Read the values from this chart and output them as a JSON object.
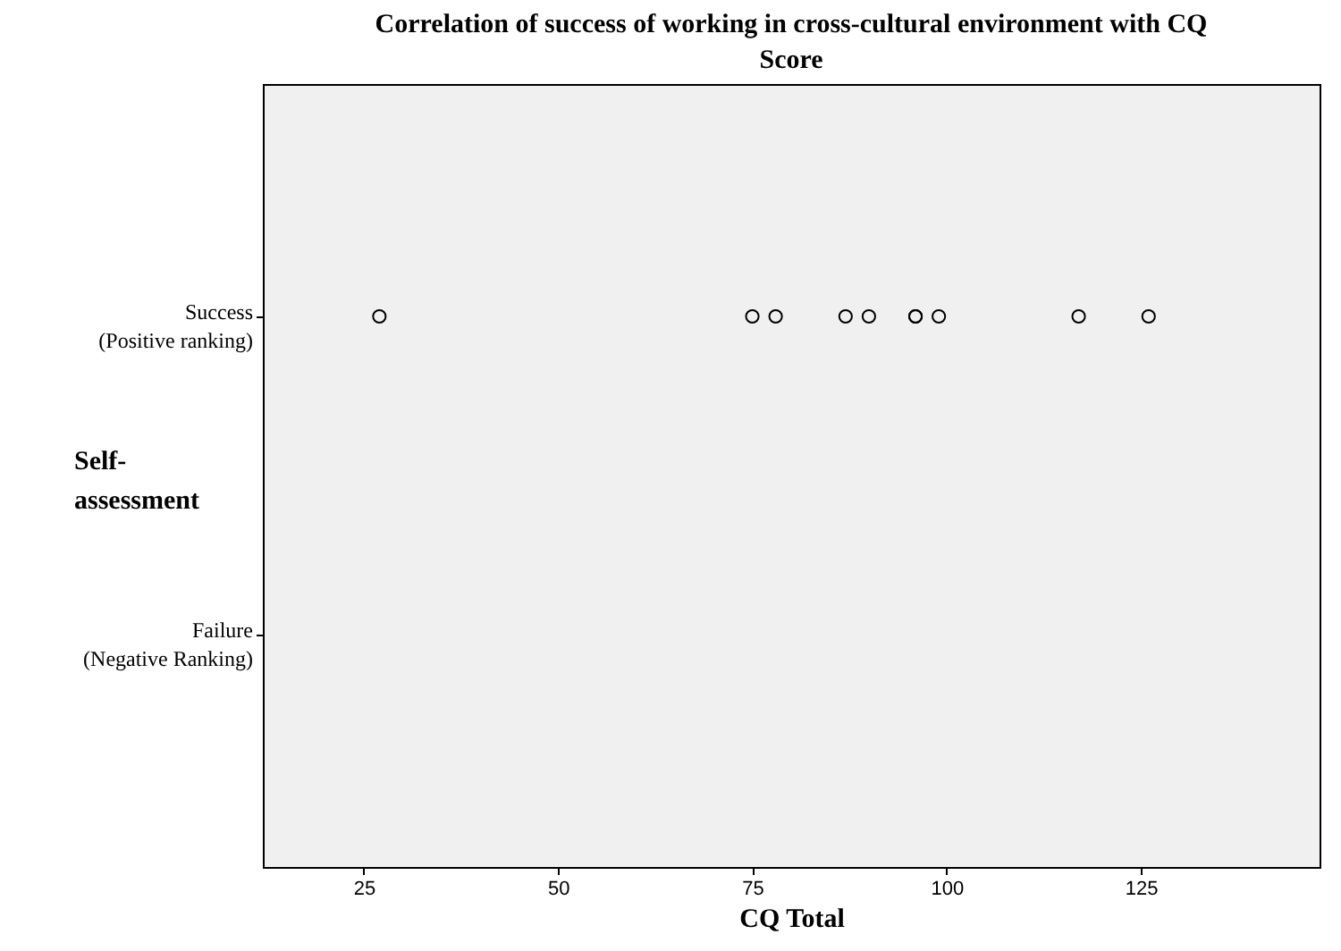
{
  "chart_data": {
    "type": "scatter",
    "orientation": "horizontal",
    "title": "Correlation of success of working in cross-cultural environment with CQ Score",
    "xlabel": "CQ Total",
    "ylabel": "Self-assessment",
    "categories": [
      "Success\n(Positive ranking)",
      "Failure\n(Negative Ranking)"
    ],
    "xlim": [
      12,
      148
    ],
    "xticks": [
      25,
      50,
      75,
      100,
      125
    ],
    "series": [
      {
        "color": "#000000",
        "values": [
          27,
          null
        ]
      },
      {
        "color": "#000000",
        "values": [
          75,
          null
        ]
      },
      {
        "color": "#000000",
        "values": [
          78,
          null
        ]
      },
      {
        "color": "#000000",
        "values": [
          87,
          null
        ]
      },
      {
        "color": "#000000",
        "values": [
          90,
          null
        ]
      },
      {
        "color": "#000000",
        "values": [
          96,
          null
        ]
      },
      {
        "color": "#000000",
        "values": [
          96,
          null
        ]
      },
      {
        "color": "#000000",
        "values": [
          99,
          null
        ]
      },
      {
        "color": "#000000",
        "values": [
          117,
          null
        ]
      },
      {
        "color": "#000000",
        "values": [
          126,
          null
        ]
      }
    ],
    "marker": "circle",
    "grid": false,
    "legend": false
  }
}
